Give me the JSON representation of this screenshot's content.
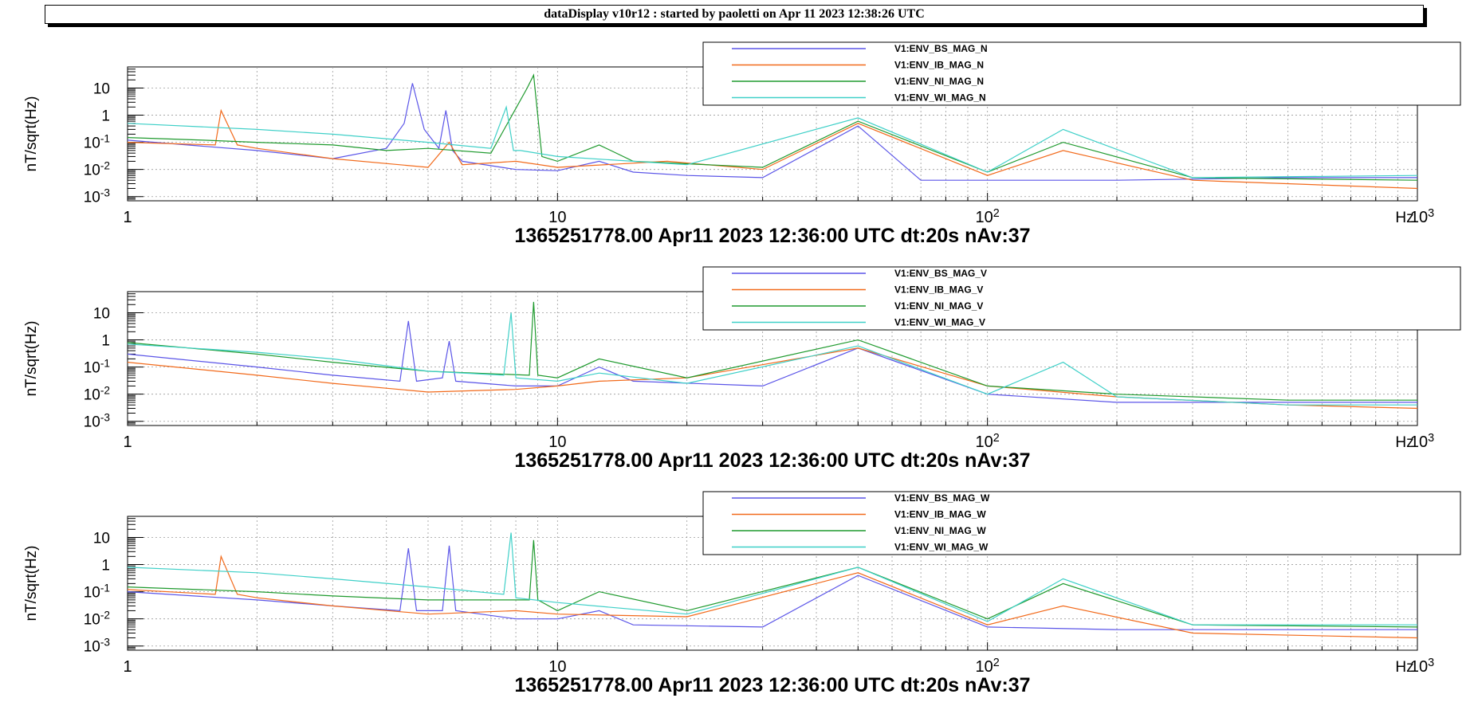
{
  "header": {
    "title": "dataDisplay v10r12 : started by paoletti on Apr 11 2023 12:38:26 UTC"
  },
  "colors": {
    "BS": "#5b55e8",
    "IB": "#f26a1b",
    "NI": "#1f9a2e",
    "WI": "#3fd0c8"
  },
  "chart_data": [
    {
      "type": "line",
      "panel": "N",
      "ylabel": "nT/sqrt(Hz)",
      "xlabel_right": "Hz",
      "footer": "1365251778.00 Apr11 2023 12:36:00 UTC dt:20s nAv:37",
      "x_scale": "log",
      "y_scale": "log",
      "xlim": [
        1,
        1000
      ],
      "ylim": [
        0.0007,
        60
      ],
      "x_ticks": [
        "1",
        "10",
        "10^2",
        "10^3"
      ],
      "y_ticks": [
        "10",
        "1",
        "10^-1",
        "10^-2",
        "10^-3"
      ],
      "grid": true,
      "legend_position": "top-right",
      "series": [
        {
          "name": "V1:ENV_BS_MAG_N",
          "key": "BS",
          "x": [
            1,
            2,
            3,
            4,
            4.4,
            4.6,
            4.9,
            5.3,
            5.5,
            5.7,
            6,
            8,
            10,
            12.5,
            15,
            20,
            30,
            50,
            70,
            100,
            200,
            500,
            1000
          ],
          "y": [
            0.12,
            0.05,
            0.025,
            0.06,
            0.5,
            15,
            0.3,
            0.06,
            1.5,
            0.05,
            0.02,
            0.01,
            0.009,
            0.02,
            0.008,
            0.006,
            0.005,
            0.4,
            0.004,
            0.004,
            0.004,
            0.005,
            0.005
          ]
        },
        {
          "name": "V1:ENV_IB_MAG_N",
          "key": "IB",
          "x": [
            1,
            1.6,
            1.65,
            1.8,
            2,
            3,
            5,
            5.6,
            6,
            8,
            10,
            18,
            30,
            50,
            100,
            150,
            300,
            1000
          ],
          "y": [
            0.1,
            0.08,
            1.5,
            0.08,
            0.06,
            0.025,
            0.012,
            0.1,
            0.015,
            0.02,
            0.012,
            0.02,
            0.01,
            0.5,
            0.006,
            0.05,
            0.004,
            0.002
          ]
        },
        {
          "name": "V1:ENV_NI_MAG_N",
          "key": "NI",
          "x": [
            1,
            1.5,
            2,
            3,
            4,
            5,
            7,
            8.5,
            8.8,
            9.2,
            10,
            12.5,
            15,
            30,
            50,
            100,
            150,
            300,
            1000
          ],
          "y": [
            0.15,
            0.12,
            0.1,
            0.08,
            0.05,
            0.06,
            0.04,
            10,
            30,
            0.03,
            0.02,
            0.08,
            0.02,
            0.012,
            0.6,
            0.008,
            0.1,
            0.005,
            0.004
          ]
        },
        {
          "name": "V1:ENV_WI_MAG_N",
          "key": "WI",
          "x": [
            1,
            2,
            3,
            5,
            7,
            7.6,
            7.9,
            8.2,
            10,
            20,
            50,
            100,
            150,
            300,
            1000
          ],
          "y": [
            0.5,
            0.3,
            0.2,
            0.1,
            0.06,
            2,
            0.05,
            0.05,
            0.03,
            0.015,
            0.8,
            0.008,
            0.3,
            0.005,
            0.006
          ]
        }
      ]
    },
    {
      "type": "line",
      "panel": "V",
      "ylabel": "nT/sqrt(Hz)",
      "xlabel_right": "Hz",
      "footer": "1365251778.00 Apr11 2023 12:36:00 UTC dt:20s nAv:37",
      "x_scale": "log",
      "y_scale": "log",
      "xlim": [
        1,
        1000
      ],
      "ylim": [
        0.0007,
        60
      ],
      "x_ticks": [
        "1",
        "10",
        "10^2",
        "10^3"
      ],
      "y_ticks": [
        "10",
        "1",
        "10^-1",
        "10^-2",
        "10^-3"
      ],
      "grid": true,
      "legend_position": "top-right",
      "series": [
        {
          "name": "V1:ENV_BS_MAG_V",
          "key": "BS",
          "x": [
            1,
            2,
            3,
            4.3,
            4.5,
            4.7,
            5.4,
            5.6,
            5.8,
            8,
            10,
            12.5,
            15,
            30,
            50,
            100,
            200,
            400,
            1000
          ],
          "y": [
            0.3,
            0.1,
            0.05,
            0.03,
            5,
            0.03,
            0.04,
            0.9,
            0.03,
            0.02,
            0.02,
            0.1,
            0.03,
            0.02,
            0.5,
            0.01,
            0.005,
            0.005,
            0.005
          ]
        },
        {
          "name": "V1:ENV_IB_MAG_V",
          "key": "IB",
          "x": [
            1,
            2,
            3,
            5,
            8,
            10,
            12.5,
            20,
            50,
            100,
            200,
            500,
            1000
          ],
          "y": [
            0.15,
            0.05,
            0.025,
            0.012,
            0.015,
            0.02,
            0.03,
            0.04,
            0.5,
            0.02,
            0.008,
            0.004,
            0.003
          ]
        },
        {
          "name": "V1:ENV_NI_MAG_V",
          "key": "NI",
          "x": [
            1,
            2,
            3,
            5,
            8.6,
            8.8,
            9,
            10,
            12.5,
            20,
            50,
            100,
            200,
            500,
            1000
          ],
          "y": [
            0.8,
            0.3,
            0.15,
            0.07,
            0.05,
            25,
            0.05,
            0.04,
            0.2,
            0.04,
            1.0,
            0.02,
            0.01,
            0.006,
            0.006
          ]
        },
        {
          "name": "V1:ENV_WI_MAG_V",
          "key": "WI",
          "x": [
            1,
            2,
            3,
            5,
            7.5,
            7.8,
            8,
            10,
            12.5,
            20,
            50,
            100,
            150,
            200,
            500,
            1000
          ],
          "y": [
            0.7,
            0.35,
            0.2,
            0.07,
            0.05,
            10,
            0.04,
            0.03,
            0.06,
            0.025,
            0.6,
            0.01,
            0.15,
            0.008,
            0.004,
            0.004
          ]
        }
      ]
    },
    {
      "type": "line",
      "panel": "W",
      "ylabel": "nT/sqrt(Hz)",
      "xlabel_right": "Hz",
      "footer": "1365251778.00 Apr11 2023 12:36:00 UTC dt:20s nAv:37",
      "x_scale": "log",
      "y_scale": "log",
      "xlim": [
        1,
        1000
      ],
      "ylim": [
        0.0007,
        60
      ],
      "x_ticks": [
        "1",
        "10",
        "10^2",
        "10^3"
      ],
      "y_ticks": [
        "10",
        "1",
        "10^-1",
        "10^-2",
        "10^-3"
      ],
      "grid": true,
      "legend_position": "top-right",
      "series": [
        {
          "name": "V1:ENV_BS_MAG_W",
          "key": "BS",
          "x": [
            1,
            2,
            3,
            4.3,
            4.5,
            4.7,
            5.4,
            5.6,
            5.8,
            8,
            10,
            12.5,
            15,
            30,
            50,
            100,
            200,
            500,
            1000
          ],
          "y": [
            0.1,
            0.05,
            0.03,
            0.02,
            4,
            0.02,
            0.02,
            5,
            0.02,
            0.01,
            0.01,
            0.02,
            0.006,
            0.005,
            0.4,
            0.005,
            0.004,
            0.004,
            0.004
          ]
        },
        {
          "name": "V1:ENV_IB_MAG_W",
          "key": "IB",
          "x": [
            1,
            1.6,
            1.65,
            1.8,
            2,
            3,
            5,
            8,
            10,
            20,
            50,
            100,
            150,
            300,
            1000
          ],
          "y": [
            0.12,
            0.08,
            2.0,
            0.08,
            0.06,
            0.03,
            0.015,
            0.02,
            0.015,
            0.012,
            0.5,
            0.006,
            0.03,
            0.003,
            0.002
          ]
        },
        {
          "name": "V1:ENV_NI_MAG_W",
          "key": "NI",
          "x": [
            1,
            2,
            3,
            5,
            8.6,
            8.8,
            9,
            10,
            12.5,
            20,
            50,
            100,
            150,
            300,
            1000
          ],
          "y": [
            0.15,
            0.1,
            0.07,
            0.05,
            0.05,
            8,
            0.05,
            0.02,
            0.1,
            0.02,
            0.8,
            0.01,
            0.2,
            0.006,
            0.005
          ]
        },
        {
          "name": "V1:ENV_WI_MAG_W",
          "key": "WI",
          "x": [
            1,
            2,
            3,
            5,
            7.5,
            7.8,
            8,
            10,
            20,
            50,
            100,
            150,
            300,
            1000
          ],
          "y": [
            0.8,
            0.5,
            0.3,
            0.15,
            0.08,
            15,
            0.06,
            0.04,
            0.015,
            0.8,
            0.008,
            0.3,
            0.006,
            0.006
          ]
        }
      ]
    }
  ]
}
